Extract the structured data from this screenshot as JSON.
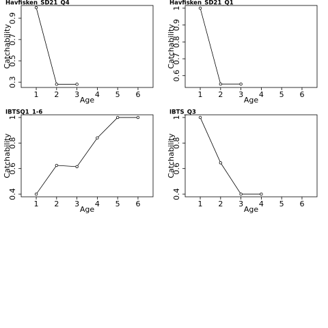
{
  "chart_data": [
    {
      "type": "line",
      "title": "Havfisken_SD21_Q4",
      "x_label": "Age",
      "y_label": "Catchability",
      "x": [
        1,
        2,
        3
      ],
      "values": [
        1.0,
        0.28,
        0.28
      ],
      "color": "#000000",
      "xlim": [
        0.26,
        6.74
      ],
      "xticks": [
        1,
        2,
        3,
        4,
        5,
        6
      ],
      "ylim": [
        0.25,
        1.02
      ],
      "yticks": [
        0.3,
        0.5,
        0.7,
        0.9
      ]
    },
    {
      "type": "line",
      "title": "Havfisken_SD21_Q1",
      "x_label": "Age",
      "y_label": "Catchability",
      "x": [
        1,
        2,
        3
      ],
      "values": [
        1.0,
        0.55,
        0.55
      ],
      "color": "#000000",
      "xlim": [
        0.26,
        6.74
      ],
      "xticks": [
        1,
        2,
        3,
        4,
        5,
        6
      ],
      "ylim": [
        0.53,
        1.016
      ],
      "yticks": [
        0.6,
        0.7,
        0.8,
        0.9,
        1.0
      ]
    },
    {
      "type": "line",
      "title": "IBTSQ1_1-6",
      "x_label": "Age",
      "y_label": "Catchability",
      "x": [
        1,
        2,
        3,
        4,
        5,
        6
      ],
      "values": [
        0.4,
        0.625,
        0.615,
        0.84,
        1.0,
        1.0
      ],
      "color": "#000000",
      "xlim": [
        0.26,
        6.74
      ],
      "xticks": [
        1,
        2,
        3,
        4,
        5,
        6
      ],
      "ylim": [
        0.379,
        1.021
      ],
      "yticks": [
        0.4,
        0.6,
        0.8,
        1.0
      ]
    },
    {
      "type": "line",
      "title": "IBTS_Q3",
      "x_label": "Age",
      "y_label": "Catchability",
      "x": [
        1,
        2,
        3,
        4
      ],
      "values": [
        1.0,
        0.645,
        0.4,
        0.4
      ],
      "color": "#000000",
      "xlim": [
        0.26,
        6.74
      ],
      "xticks": [
        1,
        2,
        3,
        4,
        5,
        6
      ],
      "ylim": [
        0.379,
        1.021
      ],
      "yticks": [
        0.4,
        0.6,
        0.8,
        1.0
      ]
    }
  ]
}
